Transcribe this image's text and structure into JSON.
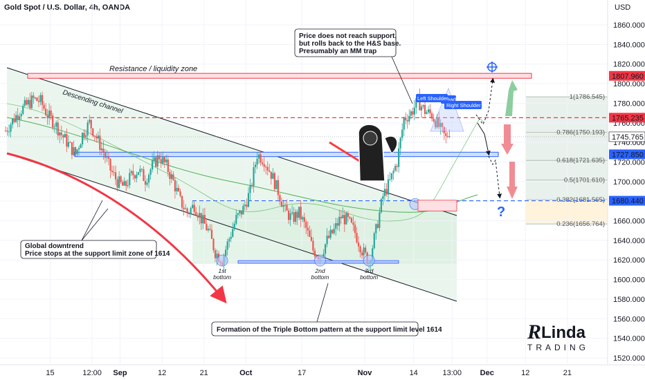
{
  "header": {
    "title": "Gold Spot / U.S. Dollar, 4h, OANDA",
    "currency": "USD"
  },
  "colors": {
    "up": "#26a69a",
    "down": "#ef5350",
    "resistance": "#f23645",
    "support": "#2962ff",
    "channel_fill": "#e6f4ea",
    "fib_fill": "#dfe9e2"
  },
  "chart_data": {
    "type": "candlestick",
    "title": "Gold Spot / U.S. Dollar, 4h, OANDA",
    "ylim": [
      1510,
      1880
    ],
    "y_ticks": [
      1520,
      1540,
      1560,
      1580,
      1600,
      1620,
      1640,
      1660,
      1680,
      1700,
      1720,
      1740,
      1760,
      1780,
      1800,
      1820,
      1840,
      1860
    ],
    "x_ticks": [
      "15",
      "12:00",
      "Sep",
      "12",
      "21",
      "Oct",
      "17",
      "Nov",
      "14",
      "13:00",
      "Dec",
      "12",
      "21"
    ],
    "x_tick_index": [
      10,
      22,
      30,
      42,
      54,
      66,
      82,
      100,
      114,
      125,
      135,
      146,
      158
    ],
    "price_path": [
      [
        0,
        1752
      ],
      [
        2,
        1762
      ],
      [
        4,
        1772
      ],
      [
        6,
        1778
      ],
      [
        8,
        1784
      ],
      [
        10,
        1782
      ],
      [
        12,
        1768
      ],
      [
        14,
        1760
      ],
      [
        16,
        1748
      ],
      [
        18,
        1738
      ],
      [
        20,
        1728
      ],
      [
        21,
        1738
      ],
      [
        22,
        1748
      ],
      [
        24,
        1760
      ],
      [
        26,
        1745
      ],
      [
        28,
        1730
      ],
      [
        30,
        1712
      ],
      [
        32,
        1700
      ],
      [
        34,
        1694
      ],
      [
        36,
        1706
      ],
      [
        38,
        1712
      ],
      [
        40,
        1702
      ],
      [
        42,
        1716
      ],
      [
        44,
        1726
      ],
      [
        46,
        1716
      ],
      [
        48,
        1700
      ],
      [
        50,
        1680
      ],
      [
        52,
        1668
      ],
      [
        54,
        1676
      ],
      [
        56,
        1662
      ],
      [
        58,
        1650
      ],
      [
        60,
        1628
      ],
      [
        62,
        1620
      ],
      [
        64,
        1642
      ],
      [
        66,
        1662
      ],
      [
        68,
        1672
      ],
      [
        70,
        1690
      ],
      [
        72,
        1728
      ],
      [
        74,
        1722
      ],
      [
        76,
        1708
      ],
      [
        78,
        1690
      ],
      [
        80,
        1670
      ],
      [
        82,
        1662
      ],
      [
        84,
        1668
      ],
      [
        86,
        1652
      ],
      [
        88,
        1630
      ],
      [
        90,
        1624
      ],
      [
        92,
        1640
      ],
      [
        94,
        1650
      ],
      [
        96,
        1664
      ],
      [
        98,
        1660
      ],
      [
        100,
        1648
      ],
      [
        102,
        1630
      ],
      [
        104,
        1618
      ],
      [
        106,
        1650
      ],
      [
        108,
        1685
      ],
      [
        110,
        1700
      ],
      [
        112,
        1720
      ],
      [
        114,
        1764
      ],
      [
        116,
        1770
      ],
      [
        118,
        1782
      ],
      [
        120,
        1772
      ],
      [
        122,
        1768
      ],
      [
        124,
        1756
      ],
      [
        126,
        1744
      ],
      [
        127,
        1752
      ]
    ],
    "levels": [
      {
        "name": "resistance",
        "price": 1807.96,
        "label": "1807.960"
      },
      {
        "name": "mid",
        "price": 1765.235,
        "label": "1765.235"
      },
      {
        "name": "current",
        "price": 1745.765,
        "label": "1745.765"
      },
      {
        "name": "support",
        "price": 1727.85,
        "label": "1727.850"
      },
      {
        "name": "neck",
        "price": 1680.44,
        "label": "1680.440"
      }
    ],
    "fib_levels": [
      {
        "ratio": "1",
        "price": 1786.545,
        "label": "1(1786.545)"
      },
      {
        "ratio": "0.786",
        "price": 1750.193,
        "label": "0.786(1750.193)"
      },
      {
        "ratio": "0.618",
        "price": 1721.635,
        "label": "0.618(1721.635)"
      },
      {
        "ratio": "0.5",
        "price": 1701.61,
        "label": "0.5(1701.610)"
      },
      {
        "ratio": "0.382",
        "price": 1681.565,
        "label": "0.382(1681.565)"
      },
      {
        "ratio": "0.236",
        "price": 1656.764,
        "label": "0.236(1656.764)"
      }
    ],
    "bottoms": [
      {
        "label": "1st\nbottom",
        "index": 62,
        "price": 1618
      },
      {
        "label": "2nd\nbottom",
        "index": 90,
        "price": 1618
      },
      {
        "label": "3rd\nbottom",
        "index": 104,
        "price": 1618
      }
    ],
    "annotations": {
      "resistance_zone": "Resistance / liquidity zone",
      "descending_channel": "Descending channel",
      "head": "Head",
      "left_shoulder": "Left Shoulder",
      "right_shoulder": "Right Shoulder",
      "top_note_1": "Price does not reach support,",
      "top_note_2": "but rolls back to the H&S base.",
      "top_note_3": "Presumably an MM trap",
      "left_note_1": "Global downtrend",
      "left_note_2": "Price stops at the support limit zone of 1614",
      "bottom_note": "Formation of the Triple Bottom pattern at the support limit level 1614",
      "question": "?"
    }
  },
  "brand": {
    "name": "Linda",
    "sub": "TRADING"
  }
}
